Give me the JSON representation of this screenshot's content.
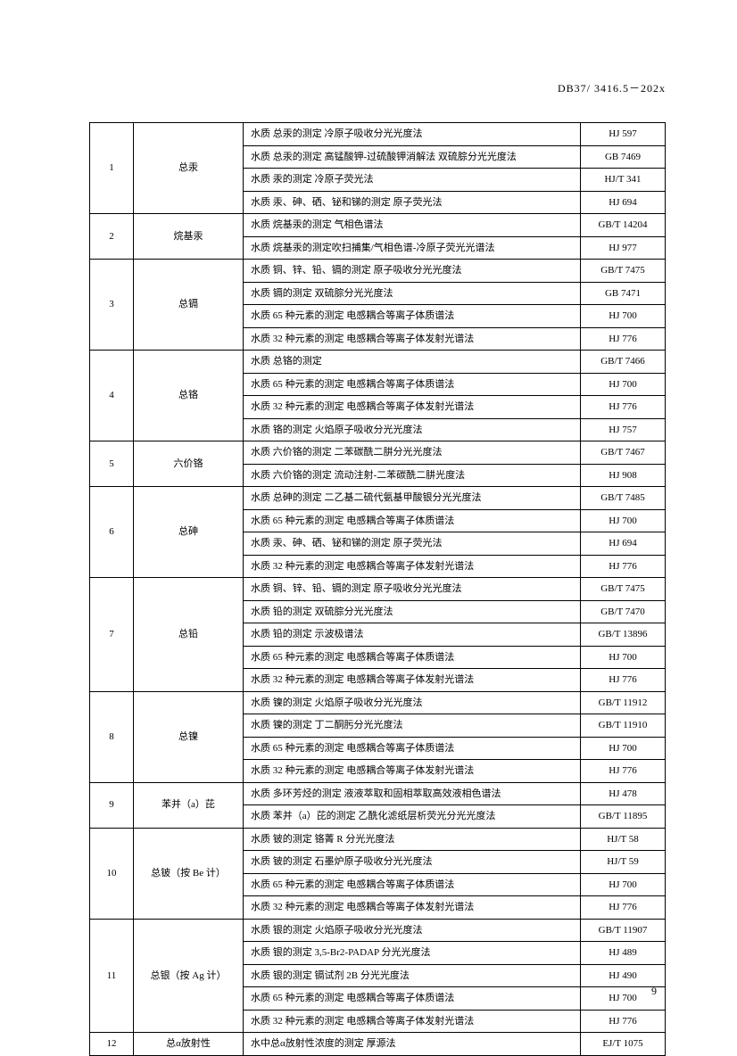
{
  "header": "DB37/ 3416.5－202x",
  "page_number": "9",
  "table": {
    "columns": [
      "idx",
      "name",
      "method",
      "standard"
    ],
    "groups": [
      {
        "idx": "1",
        "name": "总汞",
        "rows": [
          {
            "method": "水质 总汞的测定 冷原子吸收分光光度法",
            "standard": "HJ 597"
          },
          {
            "method": "水质 总汞的测定 高锰酸钾-过硫酸钾消解法 双硫腙分光光度法",
            "standard": "GB 7469"
          },
          {
            "method": "水质 汞的测定 冷原子荧光法",
            "standard": "HJ/T 341"
          },
          {
            "method": "水质 汞、砷、硒、铋和锑的测定 原子荧光法",
            "standard": "HJ 694"
          }
        ]
      },
      {
        "idx": "2",
        "name": "烷基汞",
        "rows": [
          {
            "method": "水质 烷基汞的测定 气相色谱法",
            "standard": "GB/T 14204"
          },
          {
            "method": "水质 烷基汞的测定吹扫捕集/气相色谱-冷原子荧光光谱法",
            "standard": "HJ 977"
          }
        ]
      },
      {
        "idx": "3",
        "name": "总镉",
        "rows": [
          {
            "method": "水质 铜、锌、铅、镉的测定 原子吸收分光光度法",
            "standard": "GB/T 7475"
          },
          {
            "method": "水质 镉的测定 双硫腙分光光度法",
            "standard": "GB 7471"
          },
          {
            "method": "水质 65 种元素的测定 电感耦合等离子体质谱法",
            "standard": "HJ 700"
          },
          {
            "method": "水质 32 种元素的测定 电感耦合等离子体发射光谱法",
            "standard": "HJ 776"
          }
        ]
      },
      {
        "idx": "4",
        "name": "总铬",
        "rows": [
          {
            "method": "水质 总铬的测定",
            "standard": "GB/T 7466"
          },
          {
            "method": "水质 65 种元素的测定 电感耦合等离子体质谱法",
            "standard": "HJ 700"
          },
          {
            "method": "水质 32 种元素的测定 电感耦合等离子体发射光谱法",
            "standard": "HJ 776"
          },
          {
            "method": "水质 铬的测定 火焰原子吸收分光光度法",
            "standard": "HJ 757"
          }
        ]
      },
      {
        "idx": "5",
        "name": "六价铬",
        "rows": [
          {
            "method": "水质 六价铬的测定 二苯碳酰二肼分光光度法",
            "standard": "GB/T 7467"
          },
          {
            "method": "水质 六价铬的测定 流动注射-二苯碳酰二肼光度法",
            "standard": "HJ 908"
          }
        ]
      },
      {
        "idx": "6",
        "name": "总砷",
        "rows": [
          {
            "method": "水质 总砷的测定 二乙基二硫代氨基甲酸银分光光度法",
            "standard": "GB/T 7485"
          },
          {
            "method": "水质 65 种元素的测定 电感耦合等离子体质谱法",
            "standard": "HJ 700"
          },
          {
            "method": "水质 汞、砷、硒、铋和锑的测定 原子荧光法",
            "standard": "HJ 694"
          },
          {
            "method": "水质 32 种元素的测定 电感耦合等离子体发射光谱法",
            "standard": "HJ 776"
          }
        ]
      },
      {
        "idx": "7",
        "name": "总铅",
        "rows": [
          {
            "method": "水质 铜、锌、铅、镉的测定 原子吸收分光光度法",
            "standard": "GB/T 7475"
          },
          {
            "method": "水质 铅的测定 双硫腙分光光度法",
            "standard": "GB/T 7470"
          },
          {
            "method": "水质 铅的测定 示波极谱法",
            "standard": "GB/T 13896"
          },
          {
            "method": "水质 65 种元素的测定 电感耦合等离子体质谱法",
            "standard": "HJ 700"
          },
          {
            "method": "水质 32 种元素的测定 电感耦合等离子体发射光谱法",
            "standard": "HJ 776"
          }
        ]
      },
      {
        "idx": "8",
        "name": "总镍",
        "rows": [
          {
            "method": "水质 镍的测定 火焰原子吸收分光光度法",
            "standard": "GB/T 11912"
          },
          {
            "method": "水质 镍的测定 丁二酮肟分光光度法",
            "standard": "GB/T 11910"
          },
          {
            "method": "水质 65 种元素的测定 电感耦合等离子体质谱法",
            "standard": "HJ 700"
          },
          {
            "method": "水质 32 种元素的测定 电感耦合等离子体发射光谱法",
            "standard": "HJ 776"
          }
        ]
      },
      {
        "idx": "9",
        "name": "苯并（a）芘",
        "rows": [
          {
            "method": "水质 多环芳烃的测定 液液萃取和固相萃取高效液相色谱法",
            "standard": "HJ 478"
          },
          {
            "method": "水质 苯并（a）芘的测定 乙酰化滤纸层析荧光分光光度法",
            "standard": "GB/T 11895"
          }
        ]
      },
      {
        "idx": "10",
        "name": "总铍（按 Be 计）",
        "rows": [
          {
            "method": "水质 铍的测定 铬菁 R 分光光度法",
            "standard": "HJ/T 58"
          },
          {
            "method": "水质 铍的测定 石墨炉原子吸收分光光度法",
            "standard": "HJ/T 59"
          },
          {
            "method": "水质 65 种元素的测定 电感耦合等离子体质谱法",
            "standard": "HJ 700"
          },
          {
            "method": "水质 32 种元素的测定 电感耦合等离子体发射光谱法",
            "standard": "HJ 776"
          }
        ]
      },
      {
        "idx": "11",
        "name": "总银（按 Ag 计）",
        "rows": [
          {
            "method": "水质 银的测定 火焰原子吸收分光光度法",
            "standard": "GB/T 11907"
          },
          {
            "method": "水质 银的测定 3,5-Br2-PADAP 分光光度法",
            "standard": "HJ 489"
          },
          {
            "method": "水质 银的测定 镉试剂 2B 分光光度法",
            "standard": "HJ 490"
          },
          {
            "method": "水质 65 种元素的测定 电感耦合等离子体质谱法",
            "standard": "HJ 700"
          },
          {
            "method": "水质 32 种元素的测定 电感耦合等离子体发射光谱法",
            "standard": "HJ 776"
          }
        ]
      },
      {
        "idx": "12",
        "name": "总α放射性",
        "rows": [
          {
            "method": "水中总α放射性浓度的测定 厚源法",
            "standard": "EJ/T 1075"
          }
        ]
      }
    ]
  }
}
